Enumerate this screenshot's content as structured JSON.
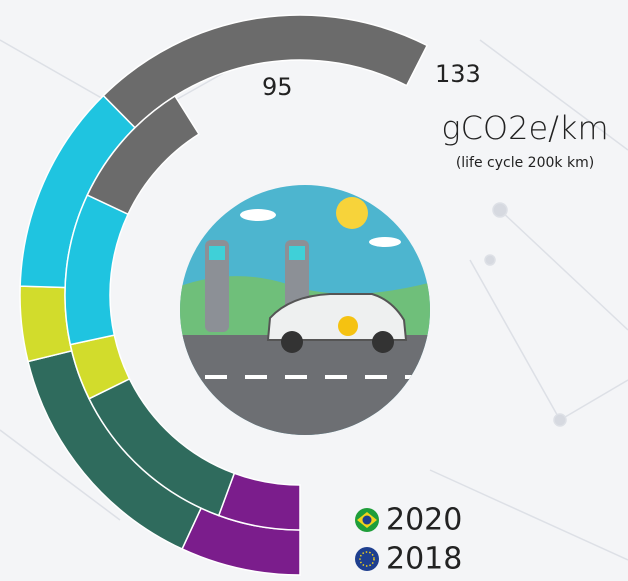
{
  "chart_data": {
    "type": "radial-stacked-bar",
    "unit": "gCO2e/km",
    "subtitle": "(life cycle 200k km)",
    "categories": [
      null,
      null,
      null,
      null,
      null
    ],
    "colors": [
      "#7b1d8c",
      "#2f6b5d",
      "#d2dc2c",
      "#1fc4e0",
      "#6b6b6b"
    ],
    "series": [
      {
        "name": "2018",
        "total": 133,
        "values": [
          16,
          33,
          10,
          28,
          46
        ]
      },
      {
        "name": "2020",
        "total": 95,
        "values": [
          13,
          28,
          9,
          24,
          21
        ]
      }
    ],
    "xlim": [
      0,
      133
    ]
  }
}
